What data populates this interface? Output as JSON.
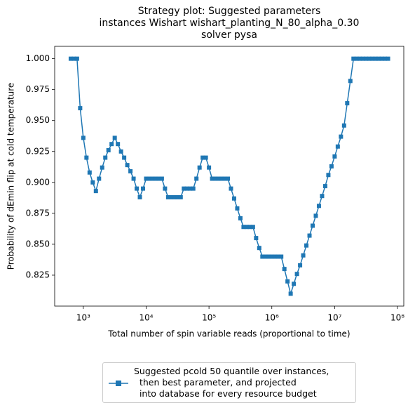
{
  "chart_data": {
    "type": "line",
    "title": "Strategy plot: Suggested parameters\ninstances Wishart wishart_planting_N_80_alpha_0.30\nsolver pysa",
    "xlabel": "Total number of spin variable reads (proportional to time)",
    "ylabel": "Probability of dEmin flip at cold temperature",
    "x": [
      631,
      708,
      794,
      891,
      1000,
      1122,
      1259,
      1413,
      1585,
      1778,
      1995,
      2239,
      2512,
      2818,
      3162,
      3548,
      3981,
      4467,
      5012,
      5623,
      6310,
      7079,
      7943,
      8913,
      10000,
      11220,
      12590,
      14130,
      15850,
      17780,
      19950,
      22390,
      25120,
      28180,
      31620,
      35480,
      39810,
      44670,
      50120,
      56230,
      63100,
      70790,
      79430,
      89130,
      100000,
      112200,
      125900,
      141300,
      158500,
      177800,
      199500,
      223900,
      251200,
      281800,
      316200,
      354800,
      398100,
      446700,
      501200,
      562300,
      631000,
      707900,
      794300,
      891300,
      1000000,
      1122000,
      1259000,
      1413000,
      1585000,
      1778000,
      1995000,
      2239000,
      2512000,
      2818000,
      3162000,
      3548000,
      3981000,
      4467000,
      5012000,
      5623000,
      6310000,
      7079000,
      7943000,
      8913000,
      10000000,
      11220000,
      12590000,
      14130000,
      15850000,
      17780000,
      19950000,
      22390000,
      25120000,
      28180000,
      31620000,
      35480000,
      39810000,
      44670000,
      50120000,
      56230000,
      63100000,
      70790000
    ],
    "series": [
      {
        "name": "Suggested pcold 50 quantile over instances,\n  then best parameter, and projected\n  into database for every resource budget",
        "color": "#1f77b4",
        "values": [
          1.0,
          1.0,
          1.0,
          0.96,
          0.936,
          0.92,
          0.908,
          0.9,
          0.893,
          0.903,
          0.912,
          0.92,
          0.926,
          0.931,
          0.936,
          0.931,
          0.925,
          0.92,
          0.914,
          0.909,
          0.903,
          0.895,
          0.888,
          0.895,
          0.903,
          0.903,
          0.903,
          0.903,
          0.903,
          0.903,
          0.895,
          0.888,
          0.888,
          0.888,
          0.888,
          0.888,
          0.895,
          0.895,
          0.895,
          0.895,
          0.903,
          0.912,
          0.92,
          0.92,
          0.912,
          0.903,
          0.903,
          0.903,
          0.903,
          0.903,
          0.903,
          0.895,
          0.887,
          0.879,
          0.871,
          0.864,
          0.864,
          0.864,
          0.864,
          0.855,
          0.847,
          0.84,
          0.84,
          0.84,
          0.84,
          0.84,
          0.84,
          0.84,
          0.83,
          0.82,
          0.81,
          0.818,
          0.826,
          0.833,
          0.841,
          0.849,
          0.857,
          0.865,
          0.873,
          0.881,
          0.889,
          0.897,
          0.906,
          0.913,
          0.921,
          0.929,
          0.937,
          0.946,
          0.964,
          0.982,
          1.0,
          1.0,
          1.0,
          1.0,
          1.0,
          1.0,
          1.0,
          1.0,
          1.0,
          1.0,
          1.0,
          1.0
        ]
      }
    ],
    "xscale": "log",
    "xlim": [
      350,
      126000000
    ],
    "xticks": [
      {
        "value": 1000,
        "label": "10³"
      },
      {
        "value": 10000,
        "label": "10⁴"
      },
      {
        "value": 100000,
        "label": "10⁵"
      },
      {
        "value": 1000000,
        "label": "10⁶"
      },
      {
        "value": 10000000,
        "label": "10⁷"
      },
      {
        "value": 100000000,
        "label": "10⁸"
      }
    ],
    "ylim": [
      0.8,
      1.01
    ],
    "yticks": [
      0.825,
      {
        "value": 0.85,
        "label": "0.850"
      },
      0.875,
      {
        "value": 0.9,
        "label": "0.900"
      },
      0.925,
      {
        "value": 0.95,
        "label": "0.950"
      },
      0.975,
      {
        "value": 1.0,
        "label": "1.000"
      }
    ],
    "grid": false,
    "legend": "lower center"
  }
}
